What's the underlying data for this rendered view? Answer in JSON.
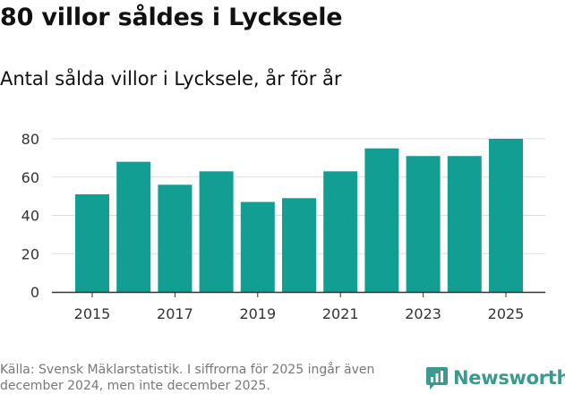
{
  "header": {
    "title": "80 villor såldes i Lycksele",
    "subtitle": "Antal sålda villor i Lycksele, år för år"
  },
  "footer": {
    "source": "Källa: Svensk Mäklarstatistik. I siffrorna för 2025 ingår även december 2024, men inte december 2025.",
    "brand": "Newsworthy"
  },
  "colors": {
    "bar": "#139e94",
    "grid": "#dddddd",
    "axis": "#333333",
    "brand": "#3a9a8e"
  },
  "chart_data": {
    "type": "bar",
    "title": "Antal sålda villor i Lycksele, år för år",
    "xlabel": "",
    "ylabel": "",
    "categories": [
      "2015",
      "2016",
      "2017",
      "2018",
      "2019",
      "2020",
      "2021",
      "2022",
      "2023",
      "2024",
      "2025"
    ],
    "values": [
      51,
      68,
      56,
      63,
      47,
      49,
      63,
      75,
      71,
      71,
      80
    ],
    "ylim": [
      0,
      80
    ],
    "yticks": [
      0,
      20,
      40,
      60,
      80
    ],
    "xticks": [
      "2015",
      "2017",
      "2019",
      "2021",
      "2023",
      "2025"
    ],
    "grid": true,
    "legend": "none"
  }
}
